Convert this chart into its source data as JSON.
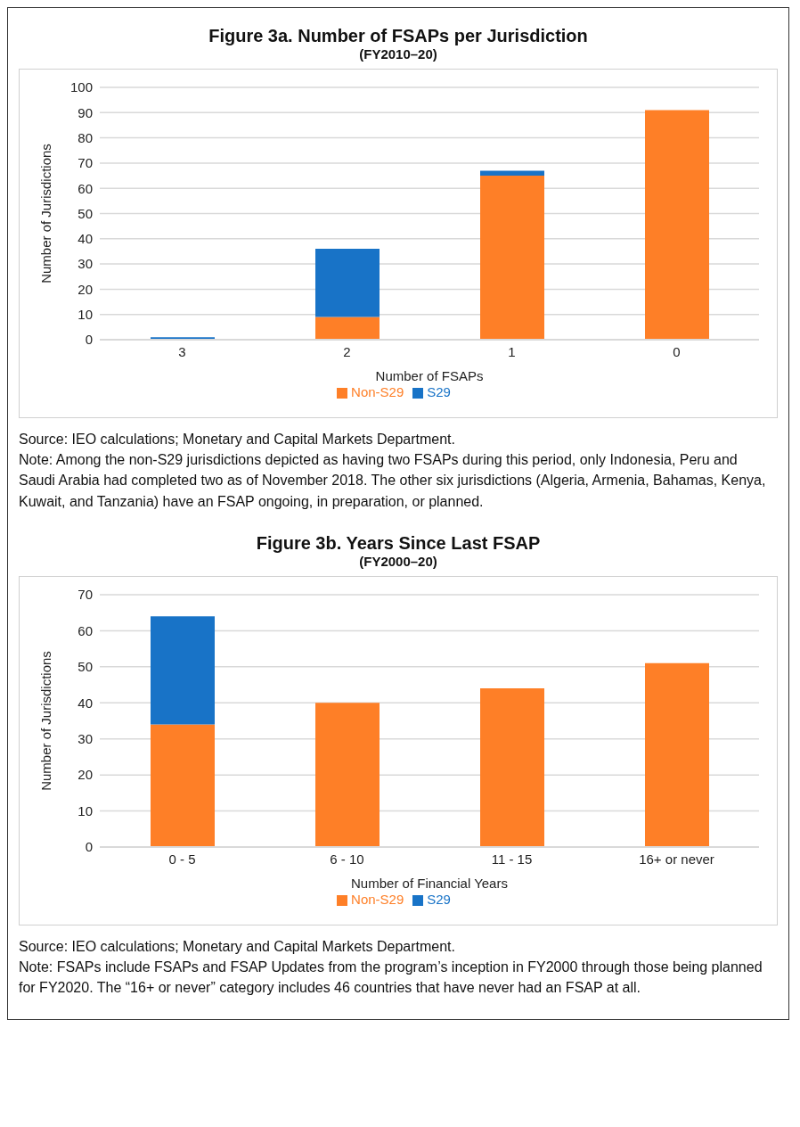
{
  "chart_data": [
    {
      "type": "bar",
      "title": "Figure 3a. Number of FSAPs per Jurisdiction",
      "subtitle": "(FY2010–20)",
      "xlabel": "Number of FSAPs",
      "ylabel": "Number of Jurisdictions",
      "categories": [
        "3",
        "2",
        "1",
        "0"
      ],
      "series": [
        {
          "name": "Non-S29",
          "color": "#fe7f27",
          "values": [
            0,
            9,
            65,
            91
          ]
        },
        {
          "name": "S29",
          "color": "#1873c7",
          "values": [
            1,
            27,
            2,
            0
          ]
        }
      ],
      "stacked": true,
      "ylim": [
        0,
        100
      ],
      "yticks": [
        0,
        10,
        20,
        30,
        40,
        50,
        60,
        70,
        80,
        90,
        100
      ],
      "grid": "y",
      "legend": "bottom",
      "annotations": [
        "Source: IEO calculations; Monetary and Capital Markets Department.",
        "Note: Among the non-S29 jurisdictions depicted as having two FSAPs during this period, only Indonesia, Peru and Saudi Arabia had completed two as of November 2018. The other six jurisdictions (Algeria, Armenia, Bahamas, Kenya, Kuwait, and Tanzania) have an FSAP ongoing, in preparation, or planned."
      ]
    },
    {
      "type": "bar",
      "title": "Figure 3b. Years Since Last FSAP",
      "subtitle": "(FY2000–20)",
      "xlabel": "Number of Financial Years",
      "ylabel": "Number of Jurisdictions",
      "categories": [
        "0 - 5",
        "6 - 10",
        "11 - 15",
        "16+ or never"
      ],
      "series": [
        {
          "name": "Non-S29",
          "color": "#fe7f27",
          "values": [
            34,
            40,
            44,
            51
          ]
        },
        {
          "name": "S29",
          "color": "#1873c7",
          "values": [
            30,
            0,
            0,
            0
          ]
        }
      ],
      "stacked": true,
      "ylim": [
        0,
        70
      ],
      "yticks": [
        0,
        10,
        20,
        30,
        40,
        50,
        60,
        70
      ],
      "grid": "y",
      "legend": "bottom",
      "annotations": [
        "Source: IEO calculations; Monetary and Capital Markets Department.",
        "Note: FSAPs include FSAPs and FSAP Updates from the program’s inception in FY2000 through those being planned for FY2020. The “16+ or never” category includes 46 countries that have never had an FSAP at all."
      ]
    }
  ]
}
